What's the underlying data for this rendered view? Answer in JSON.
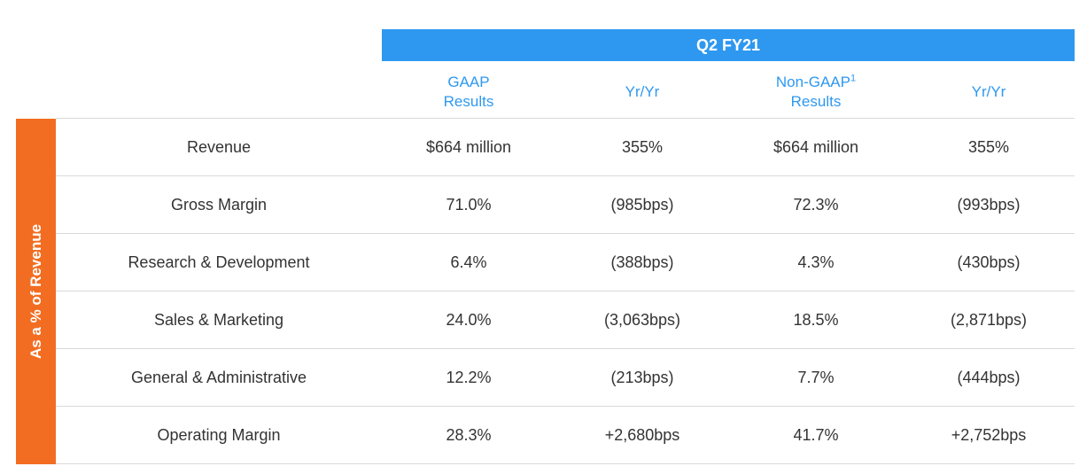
{
  "banner": {
    "title": "Q2 FY21"
  },
  "headers": [
    {
      "line1": "GAAP",
      "line2": "Results",
      "sup": ""
    },
    {
      "line1": "Yr/Yr",
      "line2": "",
      "sup": ""
    },
    {
      "line1": "Non-GAAP",
      "line2": "Results",
      "sup": "1"
    },
    {
      "line1": "Yr/Yr",
      "line2": "",
      "sup": ""
    }
  ],
  "sidebar": {
    "label": "As a % of Revenue"
  },
  "rows": [
    {
      "label": "Revenue",
      "gaap": "$664 million",
      "gaap_yoy": "355%",
      "nongaap": "$664 million",
      "nongaap_yoy": "355%"
    },
    {
      "label": "Gross Margin",
      "gaap": "71.0%",
      "gaap_yoy": "(985bps)",
      "nongaap": "72.3%",
      "nongaap_yoy": "(993bps)"
    },
    {
      "label": "Research & Development",
      "gaap": "6.4%",
      "gaap_yoy": "(388bps)",
      "nongaap": "4.3%",
      "nongaap_yoy": "(430bps)"
    },
    {
      "label": "Sales & Marketing",
      "gaap": "24.0%",
      "gaap_yoy": "(3,063bps)",
      "nongaap": "18.5%",
      "nongaap_yoy": "(2,871bps)"
    },
    {
      "label": "General & Administrative",
      "gaap": "12.2%",
      "gaap_yoy": "(213bps)",
      "nongaap": "7.7%",
      "nongaap_yoy": "(444bps)"
    },
    {
      "label": "Operating Margin",
      "gaap": "28.3%",
      "gaap_yoy": "+2,680bps",
      "nongaap": "41.7%",
      "nongaap_yoy": "+2,752bps"
    }
  ]
}
